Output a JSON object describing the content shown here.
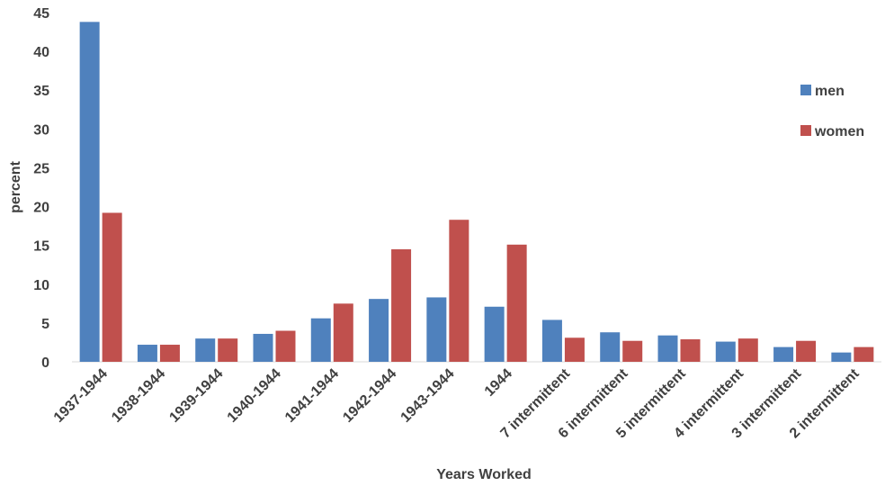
{
  "chart_data": {
    "type": "bar",
    "title": "",
    "xlabel": "Years Worked",
    "ylabel": "percent",
    "ylim": [
      0,
      45
    ],
    "yticks": [
      0,
      5,
      10,
      15,
      20,
      25,
      30,
      35,
      40,
      45
    ],
    "grid": false,
    "legend_position": "right",
    "categories": [
      "1937-1944",
      "1938-1944",
      "1939-1944",
      "1940-1944",
      "1941-1944",
      "1942-1944",
      "1943-1944",
      "1944",
      "7 intermittent",
      "6 intermittent",
      "5 intermittent",
      "4 intermittent",
      "3 intermittent",
      "2 intermittent"
    ],
    "series": [
      {
        "name": "men",
        "color": "#4f81bd",
        "values": [
          43.8,
          2.2,
          3.0,
          3.6,
          5.6,
          8.1,
          8.3,
          7.1,
          5.4,
          3.8,
          3.4,
          2.6,
          1.9,
          1.2
        ]
      },
      {
        "name": "women",
        "color": "#c0504d",
        "values": [
          19.2,
          2.2,
          3.0,
          4.0,
          7.5,
          14.5,
          18.3,
          15.1,
          3.1,
          2.7,
          2.9,
          3.0,
          2.7,
          1.9
        ]
      }
    ]
  }
}
